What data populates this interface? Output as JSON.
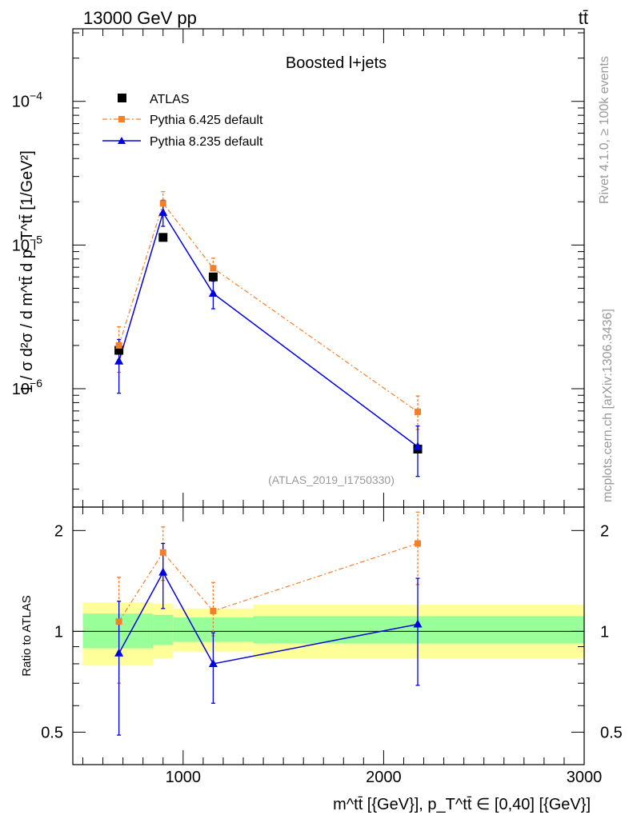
{
  "header": {
    "left": "13000 GeV pp",
    "right": "tt̄"
  },
  "side": {
    "rivet": "Rivet 4.1.0, ≥ 100k events",
    "mcplots": "mcplots.cern.ch [arXiv:1306.3436]"
  },
  "chart_data": {
    "type": "line",
    "title": "Boosted l+jets",
    "analysis_label": "(ATLAS_2019_I1750330)",
    "xlabel": "m^tt̄ [{GeV}], p_T^tt̄ ∈ [0,40] [{GeV}]",
    "ylabel": "1 / σ d²σ / d m^tt̄ d p_T^tt̄ [1/GeV²]",
    "ratio_ylabel": "Ratio to ATLAS",
    "xlim": [
      450,
      3000
    ],
    "ylim": [
      1.5e-07,
      0.00032
    ],
    "yscale": "log",
    "ratio_ylim": [
      0.4,
      2.35
    ],
    "x_ticks": [
      1000,
      2000,
      3000
    ],
    "x_tick_labels": [
      "1000",
      "2000",
      "3000"
    ],
    "y_tick_labels": [
      {
        "value": 1e-06,
        "base": "10",
        "exp": "−6"
      },
      {
        "value": 1e-05,
        "base": "10",
        "exp": "−5"
      },
      {
        "value": 0.0001,
        "base": "10",
        "exp": "−4"
      }
    ],
    "ratio_ticks": [
      0.5,
      1,
      2
    ],
    "ratio_tick_labels": [
      "0.5",
      "1",
      "2"
    ],
    "series": [
      {
        "name": "ATLAS",
        "color": "#000000",
        "marker": "square",
        "x": [
          680,
          900,
          1150,
          2170
        ],
        "y": [
          1.85e-06,
          1.13e-05,
          6e-06,
          3.8e-07
        ]
      },
      {
        "name": "Pythia 6.425 default",
        "color": "#f47f2b",
        "marker": "square",
        "linestyle": "dashdot",
        "x": [
          680,
          900,
          1150,
          2170
        ],
        "y": [
          2e-06,
          1.95e-05,
          6.9e-06,
          6.9e-07
        ],
        "err_lo": [
          1.3e-06,
          1.6e-05,
          5.8e-06,
          5.2e-07
        ],
        "err_hi": [
          2.7e-06,
          2.35e-05,
          8.1e-06,
          8.9e-07
        ],
        "ratio": [
          1.07,
          1.72,
          1.15,
          1.83
        ],
        "ratio_lo": [
          0.7,
          1.42,
          0.97,
          1.38
        ],
        "ratio_hi": [
          1.45,
          2.05,
          1.4,
          2.27
        ]
      },
      {
        "name": "Pythia 8.235 default",
        "color": "#0000e0",
        "marker": "triangle",
        "linestyle": "solid",
        "x": [
          680,
          900,
          1150,
          2170
        ],
        "y": [
          1.55e-06,
          1.68e-05,
          4.6e-06,
          3.95e-07
        ],
        "err_lo": [
          9.3e-07,
          1.35e-05,
          3.6e-06,
          2.45e-07
        ],
        "err_hi": [
          2.2e-06,
          2.05e-05,
          5.6e-06,
          5.5e-07
        ],
        "ratio": [
          0.86,
          1.5,
          0.8,
          1.05
        ],
        "ratio_lo": [
          0.49,
          1.17,
          0.61,
          0.69
        ],
        "ratio_hi": [
          1.23,
          1.83,
          0.99,
          1.44
        ]
      }
    ],
    "ratio_bands": {
      "edges": [
        500,
        850,
        950,
        1350,
        3000
      ],
      "outer_lo": [
        0.79,
        0.83,
        0.87,
        0.83
      ],
      "outer_hi": [
        1.22,
        1.21,
        1.17,
        1.2
      ],
      "inner_lo": [
        0.89,
        0.91,
        0.93,
        0.92
      ],
      "inner_hi": [
        1.13,
        1.12,
        1.1,
        1.11
      ]
    }
  },
  "colors": {
    "band_outer": "#ffff99",
    "band_inner": "#99ff99",
    "pythia6": "#f47f2b",
    "pythia8": "#0000e0",
    "grey_text": "#999999"
  }
}
